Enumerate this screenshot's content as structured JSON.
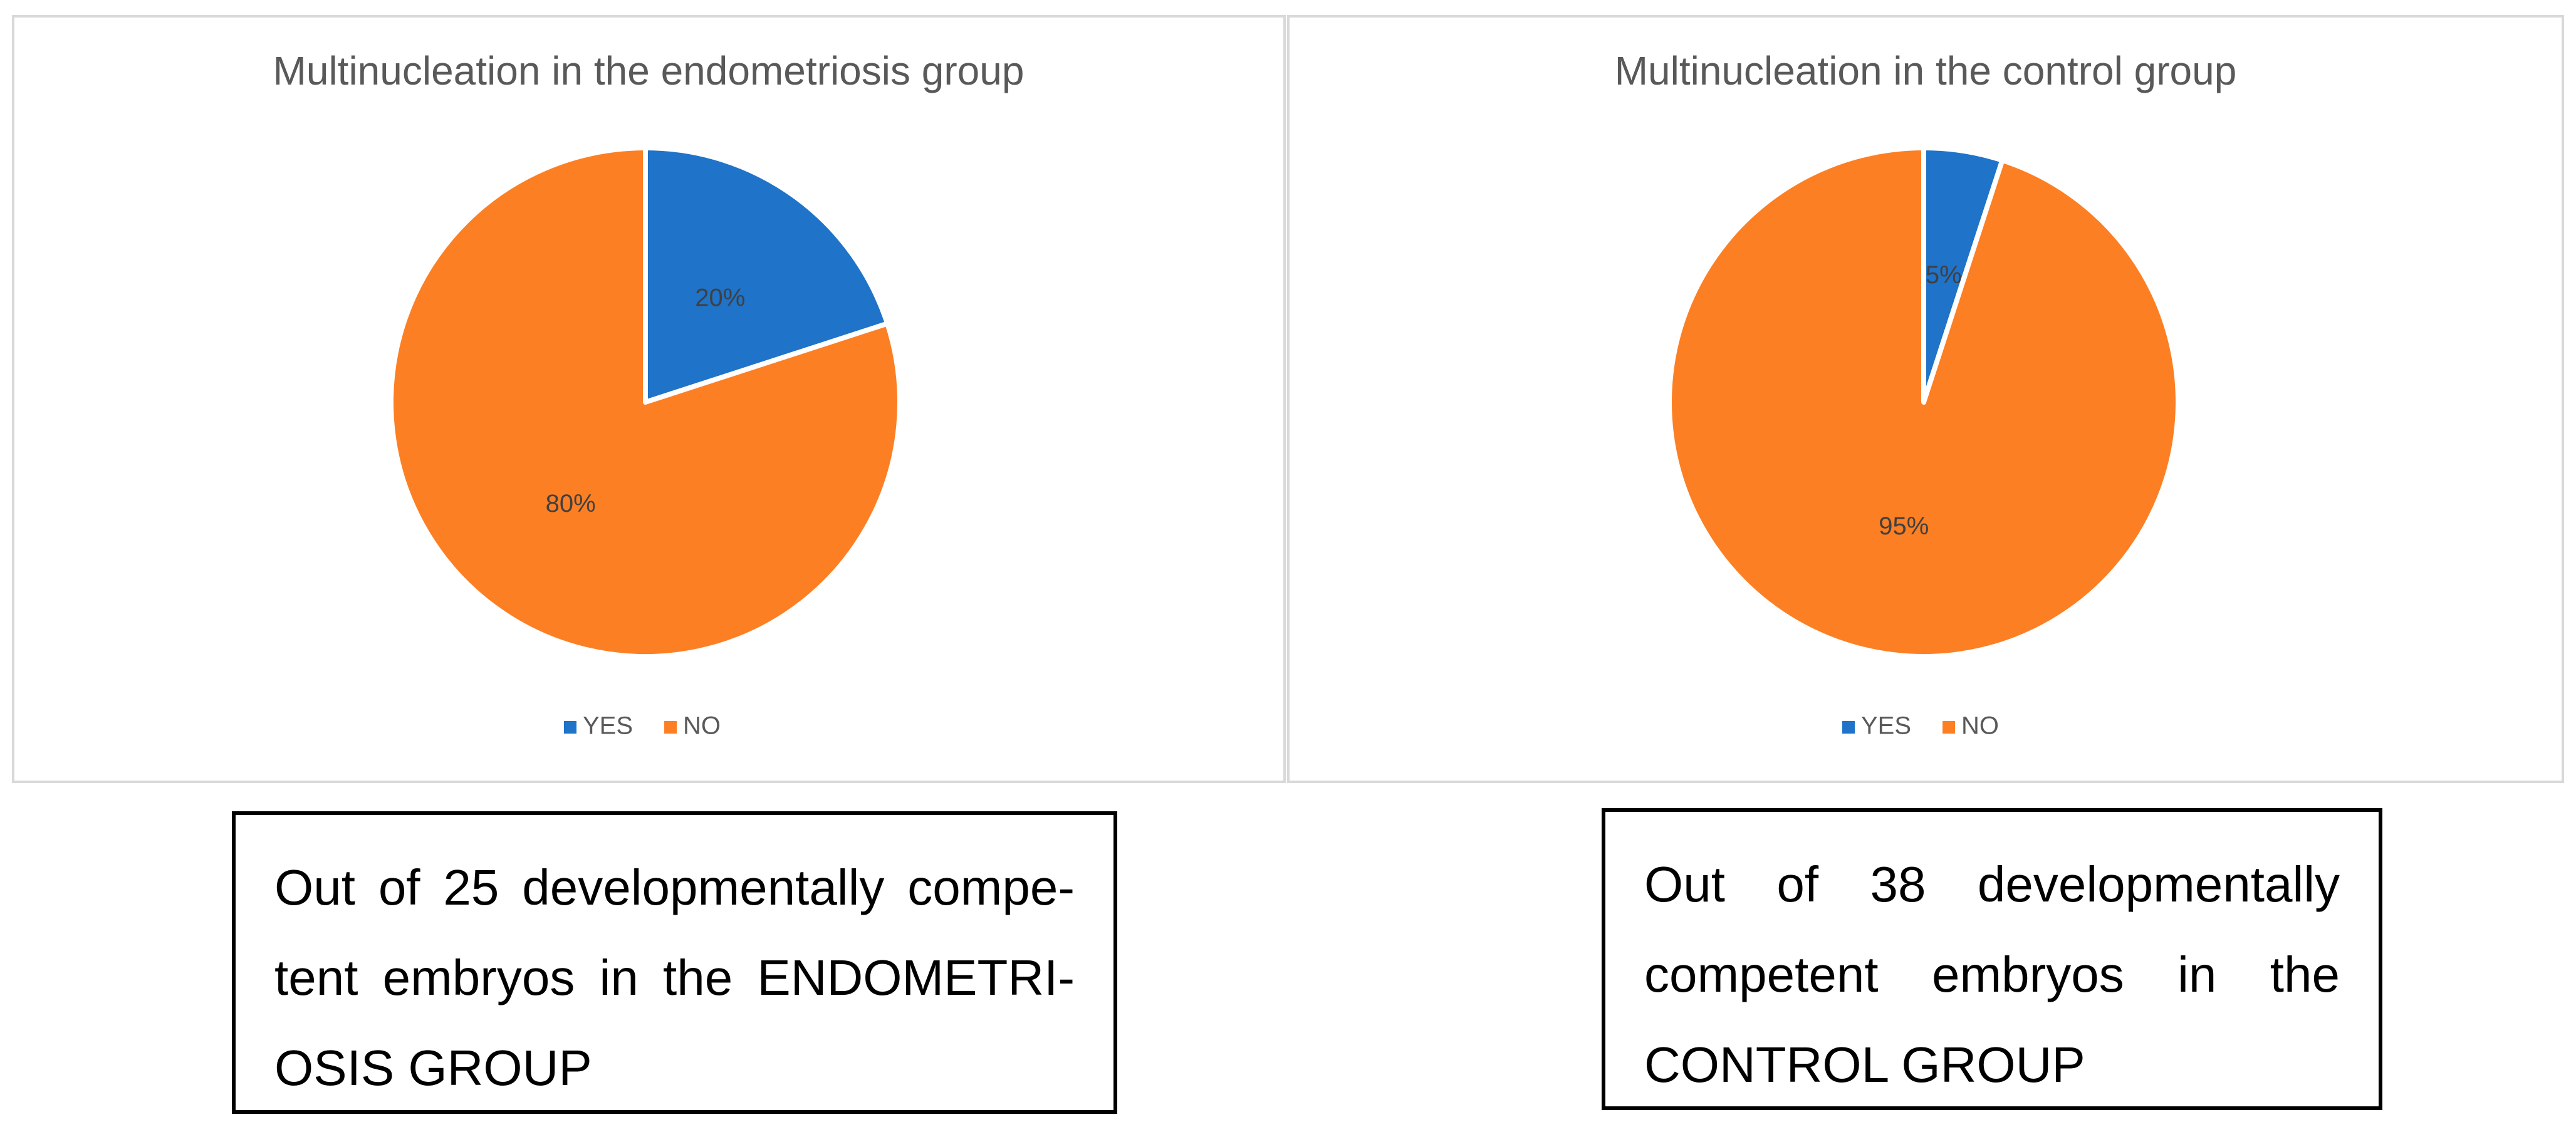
{
  "chart_data": [
    {
      "type": "pie",
      "title": "Multinucleation in the endometriosis group",
      "categories": [
        "YES",
        "NO"
      ],
      "values": [
        20,
        80
      ],
      "value_labels": [
        "20%",
        "80%"
      ],
      "colors": [
        "#1f73c8",
        "#fd7f24"
      ]
    },
    {
      "type": "pie",
      "title": "Multinucleation in the control group",
      "categories": [
        "YES",
        "NO"
      ],
      "values": [
        5,
        95
      ],
      "value_labels": [
        "5%",
        "95%"
      ],
      "colors": [
        "#1f73c8",
        "#fd7f24"
      ]
    }
  ],
  "text_boxes": [
    {
      "lines": [
        "Out of 25 developmentally compe-",
        "tent embryos in the ENDOMETRI-",
        "OSIS GROUP"
      ]
    },
    {
      "lines": [
        "Out of 38 developmentally",
        "competent embryos in the",
        "CONTROL GROUP"
      ]
    }
  ]
}
